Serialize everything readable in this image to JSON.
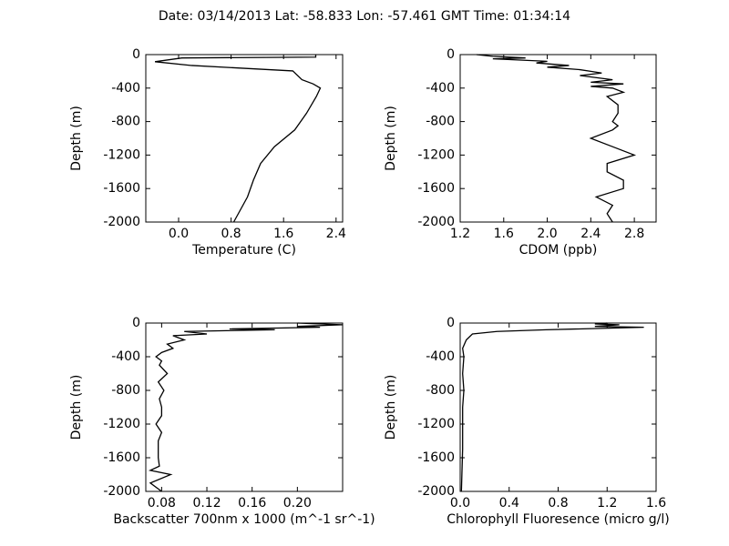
{
  "title": "Date: 03/14/2013  Lat:  -58.833 Lon:  -57.461  GMT Time: 01:34:14",
  "chart_data": [
    {
      "type": "line",
      "xlabel": "Temperature (C)",
      "ylabel": "Depth (m)",
      "color": "#000000",
      "x": [
        2.09,
        2.09,
        0.05,
        -0.36,
        0.2,
        1.74,
        1.88,
        2.05,
        2.16,
        2.1,
        1.95,
        1.77,
        1.46,
        1.25,
        1.14,
        1.05,
        0.84
      ],
      "values": [
        0,
        -30,
        -40,
        -85,
        -130,
        -195,
        -300,
        -350,
        -400,
        -500,
        -700,
        -900,
        -1100,
        -1300,
        -1500,
        -1700,
        -2000
      ],
      "xlim": [
        -0.5,
        2.5
      ],
      "xticks": [
        {
          "value": 0,
          "label": "0.0"
        },
        0.8,
        1.6,
        2.4
      ],
      "ylim": [
        -2000,
        0
      ],
      "yticks": [
        0,
        -400,
        -800,
        -1200,
        -1600,
        -2000
      ]
    },
    {
      "type": "line",
      "xlabel": "CDOM (ppb)",
      "ylabel": "Depth (m)",
      "color": "#000000",
      "x": [
        1.35,
        1.5,
        1.8,
        1.5,
        2.0,
        1.9,
        2.2,
        2.0,
        2.3,
        2.4,
        2.5,
        2.3,
        2.6,
        2.4,
        2.7,
        2.4,
        2.6,
        2.7,
        2.55,
        2.65,
        2.65,
        2.6,
        2.65,
        2.6,
        2.4,
        2.6,
        2.8,
        2.55,
        2.55,
        2.7,
        2.7,
        2.45,
        2.6,
        2.55,
        2.6
      ],
      "values": [
        0,
        -20,
        -40,
        -50,
        -80,
        -100,
        -130,
        -150,
        -180,
        -200,
        -220,
        -250,
        -300,
        -330,
        -350,
        -380,
        -400,
        -450,
        -500,
        -600,
        -700,
        -800,
        -850,
        -900,
        -1000,
        -1100,
        -1200,
        -1300,
        -1400,
        -1500,
        -1600,
        -1700,
        -1800,
        -1900,
        -2000
      ],
      "xlim": [
        1.2,
        3.0
      ],
      "xticks": [
        1.2,
        1.6,
        {
          "value": 2,
          "label": "2.0"
        },
        2.4,
        2.8
      ],
      "ylim": [
        -2000,
        0
      ],
      "yticks": [
        0,
        -400,
        -800,
        -1200,
        -1600,
        -2000
      ]
    },
    {
      "type": "line",
      "xlabel": "Backscatter 700nm x 1000 (m^-1 sr^-1)",
      "ylabel": "Depth (m)",
      "color": "#000000",
      "x": [
        0.2,
        0.24,
        0.2,
        0.22,
        0.14,
        0.18,
        0.1,
        0.12,
        0.09,
        0.1,
        0.085,
        0.09,
        0.08,
        0.075,
        0.08,
        0.078,
        0.085,
        0.077,
        0.082,
        0.078,
        0.08,
        0.08,
        0.075,
        0.08,
        0.077,
        0.077,
        0.078,
        0.07,
        0.088,
        0.07,
        0.08
      ],
      "values": [
        0,
        -20,
        -40,
        -50,
        -70,
        -80,
        -100,
        -130,
        -150,
        -200,
        -250,
        -300,
        -350,
        -400,
        -450,
        -500,
        -600,
        -700,
        -800,
        -900,
        -1000,
        -1100,
        -1200,
        -1300,
        -1400,
        -1600,
        -1700,
        -1750,
        -1800,
        -1900,
        -2000
      ],
      "xlim": [
        0.066,
        0.24
      ],
      "xticks": [
        0.08,
        0.12,
        0.16,
        {
          "value": 0.2,
          "label": "0.20"
        }
      ],
      "ylim": [
        -2000,
        0
      ],
      "yticks": [
        0,
        -400,
        -800,
        -1200,
        -1600,
        -2000
      ]
    },
    {
      "type": "line",
      "xlabel": "Chlorophyll Fluoresence (micro g/l)",
      "ylabel": "Depth (m)",
      "color": "#000000",
      "x": [
        1.2,
        1.1,
        1.3,
        1.1,
        1.5,
        0.7,
        0.3,
        0.1,
        0.05,
        0.02,
        0.03,
        0.02,
        0.03,
        0.02,
        0.02,
        0.01
      ],
      "values": [
        0,
        -10,
        -20,
        -40,
        -50,
        -80,
        -100,
        -130,
        -200,
        -300,
        -400,
        -600,
        -800,
        -1000,
        -1500,
        -2000
      ],
      "xlim": [
        0,
        1.6
      ],
      "xticks": [
        {
          "value": 0,
          "label": "0.0"
        },
        0.4,
        0.8,
        1.2,
        1.6
      ],
      "ylim": [
        -2000,
        0
      ],
      "yticks": [
        0,
        -400,
        -800,
        -1200,
        -1600,
        -2000
      ]
    }
  ]
}
